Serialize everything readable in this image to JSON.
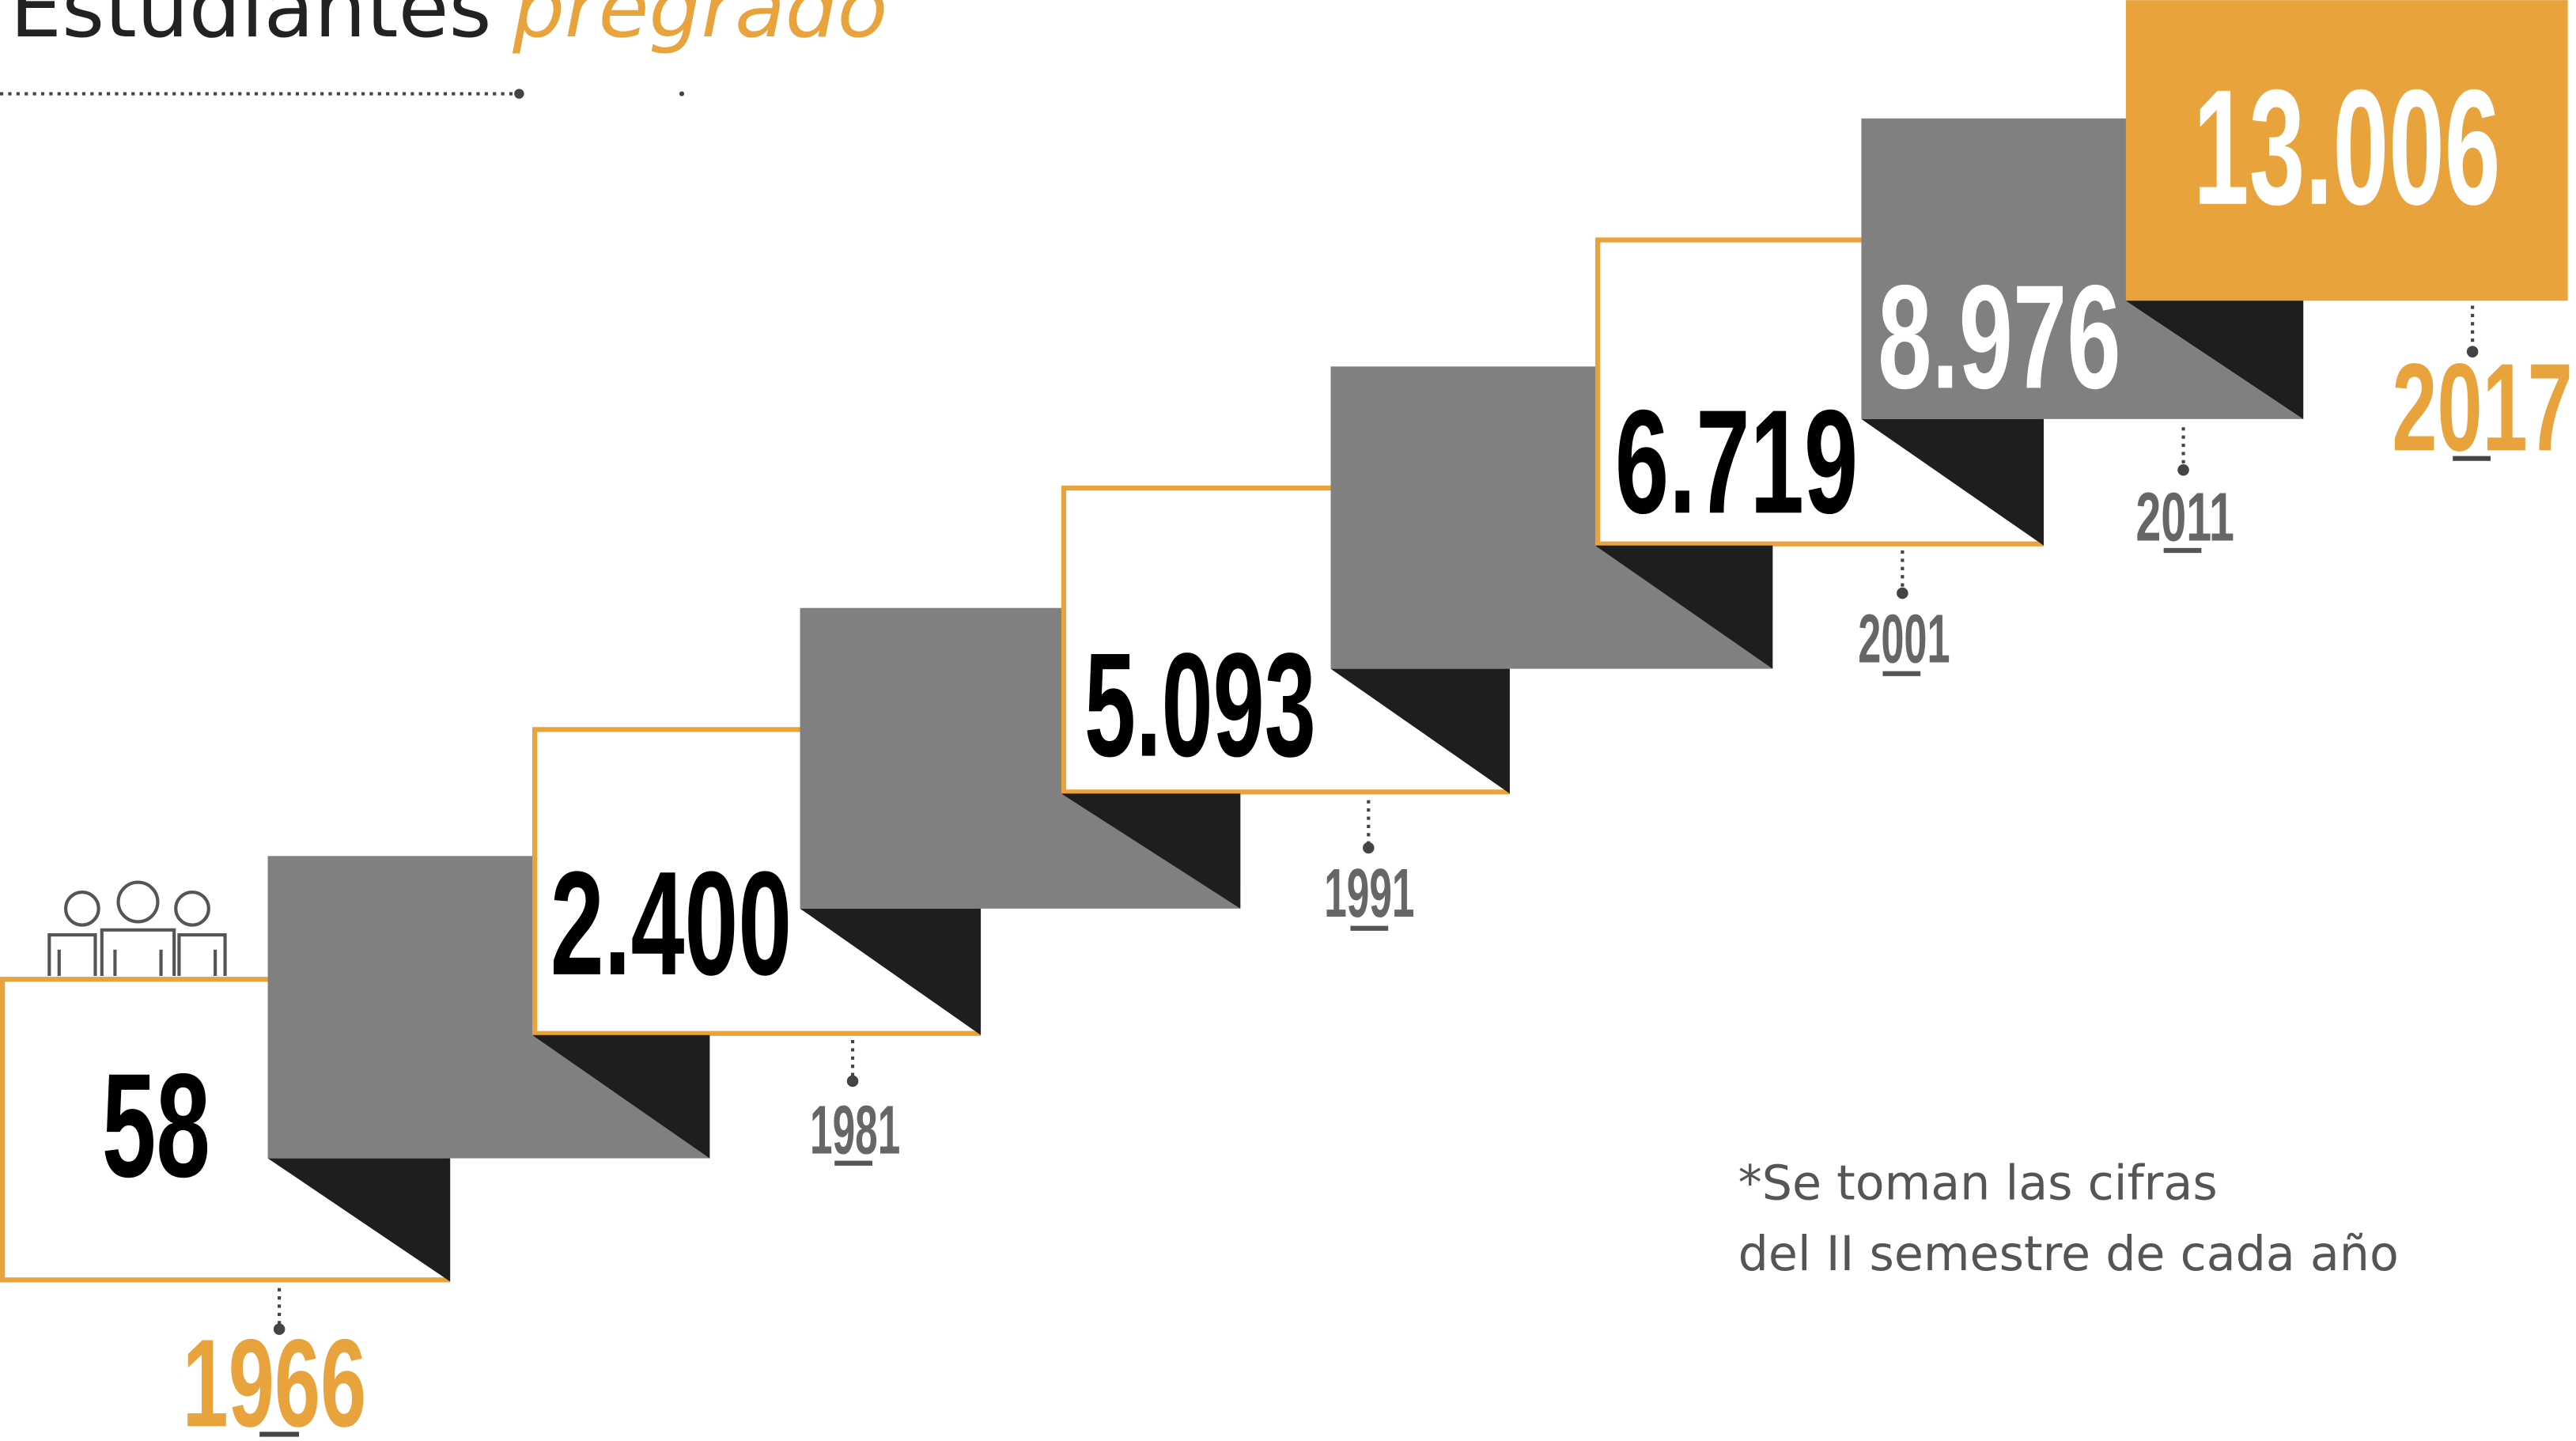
{
  "title": {
    "main": "Estudiantes",
    "accent": "pregrado"
  },
  "steps": [
    {
      "value": "58",
      "year": "1966"
    },
    {
      "value": "2.400",
      "year": "1981"
    },
    {
      "value": "5.093",
      "year": "1991"
    },
    {
      "value": "6.719",
      "year": "2001"
    },
    {
      "value": "8.976",
      "year": "2011"
    },
    {
      "value": "13.006",
      "year": "2017"
    }
  ],
  "note": [
    "*Se toman las cifras",
    "del II semestre de cada año"
  ]
}
